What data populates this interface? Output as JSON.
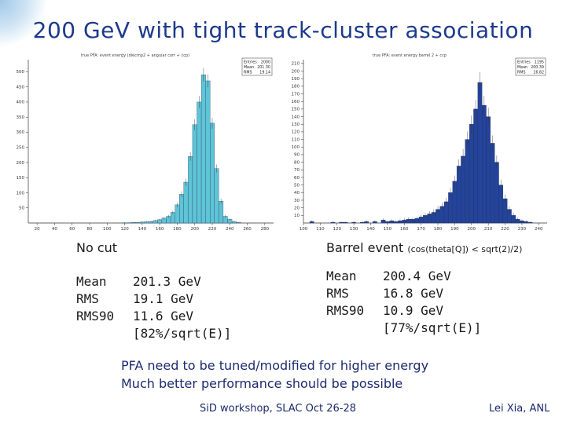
{
  "title": "200 GeV with tight track-cluster association",
  "left": {
    "section_title": "No cut",
    "stats": [
      {
        "k": "Mean",
        "v": "201.3 GeV"
      },
      {
        "k": "RMS",
        "v": "19.1 GeV"
      },
      {
        "k": "RMS90",
        "v": "11.6 GeV"
      },
      {
        "k": "",
        "v": "[82%/sqrt(E)]"
      }
    ]
  },
  "right": {
    "section_title": "Barrel event",
    "section_note": "(cos(theta[Q]) < sqrt(2)/2)",
    "stats": [
      {
        "k": "Mean",
        "v": "200.4 GeV"
      },
      {
        "k": "RMS",
        "v": "16.8 GeV"
      },
      {
        "k": "RMS90",
        "v": "10.9 GeV"
      },
      {
        "k": "",
        "v": "[77%/sqrt(E)]"
      }
    ]
  },
  "notes": [
    "PFA need to be tuned/modified for higher energy",
    "Much better performance should be possible"
  ],
  "footer": {
    "center": "SiD workshop, SLAC Oct 26-28",
    "right": "Lei Xia, ANL"
  },
  "chart_data": [
    {
      "type": "bar",
      "title": "true PFA: event energy (diecmp2 + angular corr + ccp)",
      "bar_color": "#5ec4d6",
      "x_ticks": [
        "20",
        "40",
        "60",
        "80",
        "100",
        "120",
        "140",
        "160",
        "180",
        "200",
        "220",
        "240",
        "260",
        "280"
      ],
      "x_range": [
        10,
        290
      ],
      "y_ticks": [
        50,
        100,
        150,
        200,
        250,
        300,
        350,
        400,
        450,
        500
      ],
      "y_range": [
        0,
        540
      ],
      "bin_width": 5,
      "bins": [
        {
          "x": 120,
          "y": 1
        },
        {
          "x": 125,
          "y": 1
        },
        {
          "x": 130,
          "y": 2
        },
        {
          "x": 135,
          "y": 2
        },
        {
          "x": 140,
          "y": 3
        },
        {
          "x": 145,
          "y": 4
        },
        {
          "x": 150,
          "y": 5
        },
        {
          "x": 155,
          "y": 8
        },
        {
          "x": 160,
          "y": 11
        },
        {
          "x": 165,
          "y": 16
        },
        {
          "x": 170,
          "y": 22
        },
        {
          "x": 175,
          "y": 35
        },
        {
          "x": 180,
          "y": 60
        },
        {
          "x": 185,
          "y": 95
        },
        {
          "x": 190,
          "y": 135
        },
        {
          "x": 195,
          "y": 220
        },
        {
          "x": 200,
          "y": 325
        },
        {
          "x": 205,
          "y": 400
        },
        {
          "x": 210,
          "y": 490
        },
        {
          "x": 215,
          "y": 470
        },
        {
          "x": 220,
          "y": 330
        },
        {
          "x": 225,
          "y": 180
        },
        {
          "x": 230,
          "y": 72
        },
        {
          "x": 235,
          "y": 22
        },
        {
          "x": 240,
          "y": 12
        },
        {
          "x": 245,
          "y": 5
        },
        {
          "x": 250,
          "y": 2
        }
      ],
      "stats_box": {
        "entries_label": "Entries",
        "entries": "2000",
        "mean_label": "Mean",
        "mean": "201.30",
        "rms_label": "RMS",
        "rms": "19.14"
      }
    },
    {
      "type": "bar",
      "title": "true PFA: event energy barrel 2 + ccp",
      "bar_color": "#24439a",
      "x_ticks": [
        "100",
        "110",
        "120",
        "130",
        "140",
        "150",
        "160",
        "170",
        "180",
        "190",
        "200",
        "210",
        "220",
        "230",
        "240"
      ],
      "x_range": [
        100,
        245
      ],
      "y_ticks": [
        10,
        20,
        30,
        40,
        50,
        60,
        70,
        80,
        90,
        100,
        110,
        120,
        130,
        140,
        150,
        160,
        170,
        180,
        190,
        200,
        210
      ],
      "y_range": [
        0,
        215
      ],
      "bin_width": 2.5,
      "bins": [
        {
          "x": 105,
          "y": 2
        },
        {
          "x": 117.5,
          "y": 1
        },
        {
          "x": 122.5,
          "y": 1
        },
        {
          "x": 125,
          "y": 1
        },
        {
          "x": 130,
          "y": 1
        },
        {
          "x": 135,
          "y": 1
        },
        {
          "x": 137.5,
          "y": 2
        },
        {
          "x": 142.5,
          "y": 2
        },
        {
          "x": 147.5,
          "y": 4
        },
        {
          "x": 150,
          "y": 2
        },
        {
          "x": 152.5,
          "y": 3
        },
        {
          "x": 155,
          "y": 2
        },
        {
          "x": 157.5,
          "y": 3
        },
        {
          "x": 160,
          "y": 4
        },
        {
          "x": 162.5,
          "y": 5
        },
        {
          "x": 165,
          "y": 5
        },
        {
          "x": 167.5,
          "y": 6
        },
        {
          "x": 170,
          "y": 8
        },
        {
          "x": 172.5,
          "y": 10
        },
        {
          "x": 175,
          "y": 12
        },
        {
          "x": 177.5,
          "y": 14
        },
        {
          "x": 180,
          "y": 18
        },
        {
          "x": 182.5,
          "y": 22
        },
        {
          "x": 185,
          "y": 28
        },
        {
          "x": 187.5,
          "y": 40
        },
        {
          "x": 190,
          "y": 55
        },
        {
          "x": 192.5,
          "y": 75
        },
        {
          "x": 195,
          "y": 88
        },
        {
          "x": 197.5,
          "y": 110
        },
        {
          "x": 200,
          "y": 130
        },
        {
          "x": 202.5,
          "y": 150
        },
        {
          "x": 205,
          "y": 185
        },
        {
          "x": 207.5,
          "y": 155
        },
        {
          "x": 210,
          "y": 140
        },
        {
          "x": 212.5,
          "y": 105
        },
        {
          "x": 215,
          "y": 80
        },
        {
          "x": 217.5,
          "y": 50
        },
        {
          "x": 220,
          "y": 32
        },
        {
          "x": 222.5,
          "y": 18
        },
        {
          "x": 225,
          "y": 10
        },
        {
          "x": 227.5,
          "y": 5
        },
        {
          "x": 230,
          "y": 3
        },
        {
          "x": 232.5,
          "y": 2
        },
        {
          "x": 235,
          "y": 1
        }
      ],
      "stats_box": {
        "entries_label": "Entries",
        "entries": "1195",
        "mean_label": "Mean",
        "mean": "200.39",
        "rms_label": "RMS",
        "rms": "16.82"
      }
    }
  ]
}
